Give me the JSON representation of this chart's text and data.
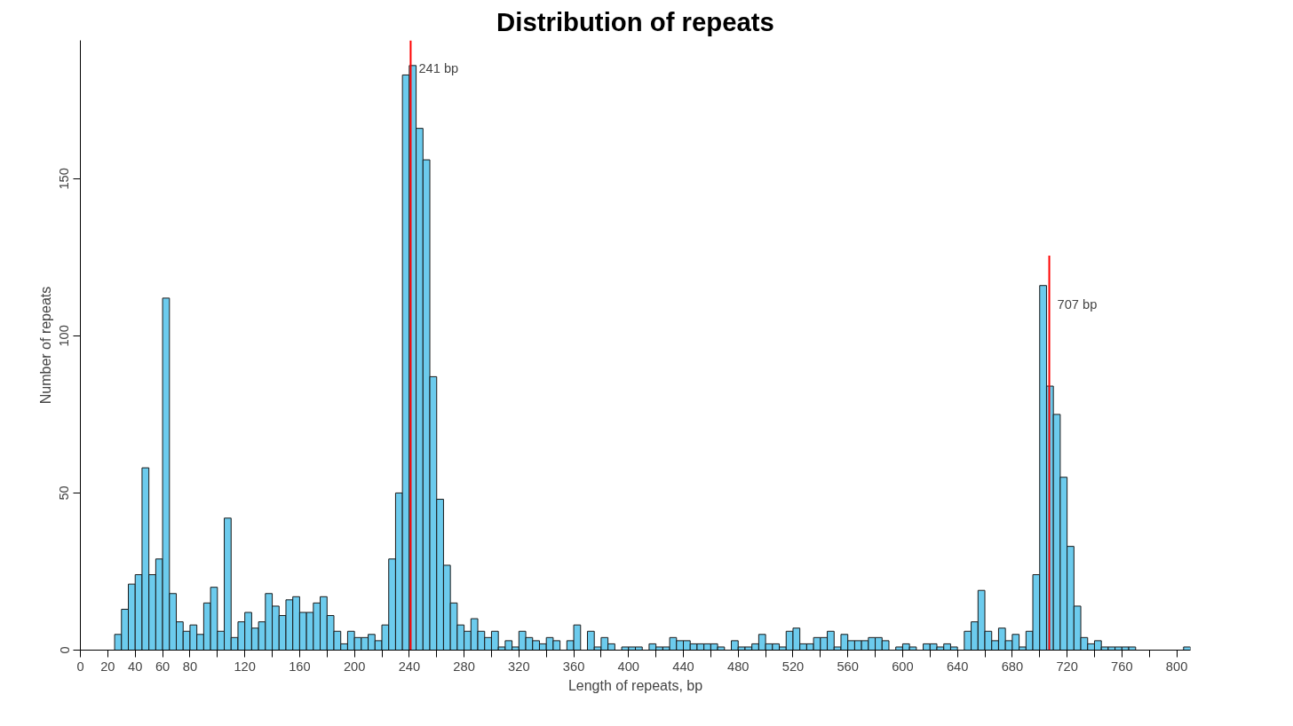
{
  "chart_data": {
    "type": "histogram",
    "title": "Distribution of repeats",
    "xlabel": "Length of repeats, bp",
    "ylabel": "Number of repeats",
    "bins": [
      25,
      30,
      35,
      40,
      45,
      50,
      55,
      60,
      65,
      70,
      75,
      80,
      85,
      90,
      95,
      100,
      105,
      110,
      115,
      120,
      125,
      130,
      135,
      140,
      145,
      150,
      155,
      160,
      165,
      170,
      175,
      180,
      185,
      190,
      195,
      200,
      205,
      210,
      215,
      220,
      225,
      230,
      235,
      240,
      245,
      250,
      255,
      260,
      265,
      270,
      275,
      280,
      285,
      290,
      295,
      300,
      305,
      310,
      315,
      320,
      325,
      330,
      335,
      340,
      345,
      350,
      355,
      360,
      365,
      370,
      375,
      380,
      385,
      390,
      395,
      400,
      405,
      410,
      415,
      420,
      425,
      430,
      435,
      440,
      445,
      450,
      455,
      460,
      465,
      470,
      475,
      480,
      485,
      490,
      495,
      500,
      505,
      510,
      515,
      520,
      525,
      530,
      535,
      540,
      545,
      550,
      555,
      560,
      565,
      570,
      575,
      580,
      585,
      590,
      595,
      600,
      605,
      610,
      615,
      620,
      625,
      630,
      635,
      640,
      645,
      650,
      655,
      660,
      665,
      670,
      675,
      680,
      685,
      690,
      695,
      700,
      705,
      710,
      715,
      720,
      725,
      730,
      735,
      740,
      745,
      750,
      755,
      760,
      765,
      770,
      775,
      780,
      785,
      790,
      795,
      800,
      805,
      810
    ],
    "values": [
      5,
      13,
      21,
      24,
      58,
      24,
      29,
      112,
      18,
      9,
      6,
      8,
      5,
      15,
      20,
      6,
      42,
      4,
      9,
      12,
      7,
      9,
      18,
      14,
      11,
      16,
      17,
      12,
      12,
      15,
      17,
      11,
      6,
      2,
      6,
      4,
      4,
      5,
      3,
      8,
      29,
      50,
      183,
      186,
      166,
      156,
      87,
      48,
      27,
      15,
      8,
      6,
      10,
      6,
      4,
      6,
      1,
      3,
      1,
      6,
      4,
      3,
      2,
      4,
      3,
      0,
      3,
      8,
      0,
      6,
      1,
      4,
      2,
      0,
      1,
      1,
      1,
      0,
      2,
      1,
      1,
      4,
      3,
      3,
      2,
      2,
      2,
      2,
      1,
      0,
      3,
      1,
      1,
      2,
      5,
      2,
      2,
      1,
      6,
      7,
      2,
      2,
      4,
      4,
      6,
      1,
      5,
      3,
      3,
      3,
      4,
      4,
      3,
      0,
      1,
      2,
      1,
      0,
      2,
      2,
      1,
      2,
      1,
      0,
      6,
      9,
      19,
      6,
      3,
      7,
      3,
      5,
      1,
      6,
      24,
      116,
      84,
      75,
      55,
      33,
      14,
      4,
      2,
      3,
      1,
      1,
      1,
      1,
      1,
      0,
      0,
      0,
      0,
      0,
      0,
      0,
      1
    ],
    "color": "#6ccbed",
    "xlim": [
      0,
      810
    ],
    "ylim": [
      0,
      194
    ],
    "xticks": [
      0,
      20,
      40,
      60,
      80,
      {
        "value": 100,
        "label": null
      },
      120,
      {
        "value": 140,
        "label": null
      },
      160,
      {
        "value": 180,
        "label": null
      },
      200,
      {
        "value": 220,
        "label": null
      },
      240,
      {
        "value": 260,
        "label": null
      },
      280,
      {
        "value": 300,
        "label": null
      },
      320,
      {
        "value": 340,
        "label": null
      },
      360,
      {
        "value": 380,
        "label": null
      },
      400,
      {
        "value": 420,
        "label": null
      },
      440,
      {
        "value": 460,
        "label": null
      },
      480,
      {
        "value": 500,
        "label": null
      },
      520,
      {
        "value": 540,
        "label": null
      },
      560,
      {
        "value": 580,
        "label": null
      },
      600,
      {
        "value": 620,
        "label": null
      },
      640,
      {
        "value": 660,
        "label": null
      },
      680,
      {
        "value": 700,
        "label": null
      },
      720,
      {
        "value": 740,
        "label": null
      },
      760,
      {
        "value": 780,
        "label": null
      },
      800
    ],
    "yticks": [
      0,
      50,
      100,
      150
    ],
    "grid": false,
    "legend": false,
    "ref_lines": [
      {
        "axis": "x",
        "value": 241,
        "color": "#ff0000"
      },
      {
        "axis": "x",
        "value": 707,
        "color": "#ff0000"
      }
    ],
    "annotations": [
      {
        "text": "241 bp",
        "x": 241,
        "y": 185
      },
      {
        "text": "707 bp",
        "x": 707,
        "y": 110
      }
    ]
  }
}
